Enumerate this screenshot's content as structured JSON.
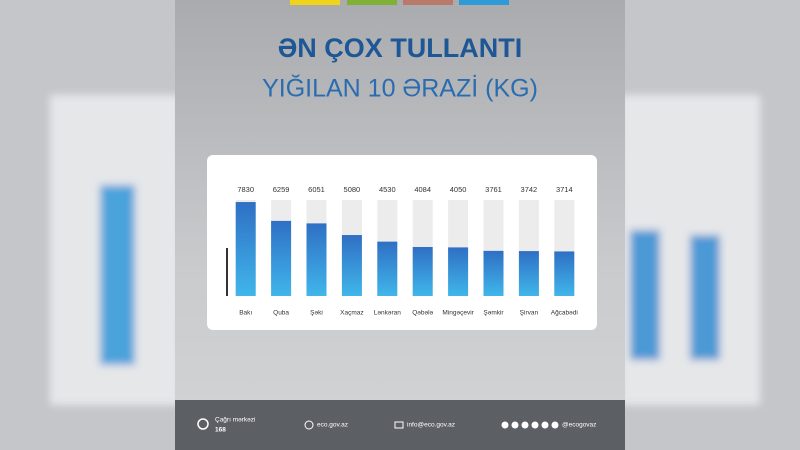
{
  "chart_data": {
    "type": "bar",
    "title": "ƏN ÇOX TULLANTI",
    "subtitle": "YIĞILAN 10 ƏRAZİ (KG)",
    "categories": [
      "Bakı",
      "Quba",
      "Şəki",
      "Xaçmaz",
      "Lənkəran",
      "Qəbələ",
      "Mingəçevir",
      "Şəmkir",
      "Şirvan",
      "Ağcabədi"
    ],
    "values": [
      7830,
      6259,
      6051,
      5080,
      4530,
      4084,
      4050,
      3761,
      3742,
      3714
    ],
    "color": "#3a86d6",
    "ylim": [
      0,
      8000
    ]
  },
  "footer": {
    "call_label": "Çağrı mərkəzi",
    "call_number": "168",
    "website": "eco.gov.az",
    "email": "info@eco.gov.az",
    "social": "@ecogovaz"
  }
}
